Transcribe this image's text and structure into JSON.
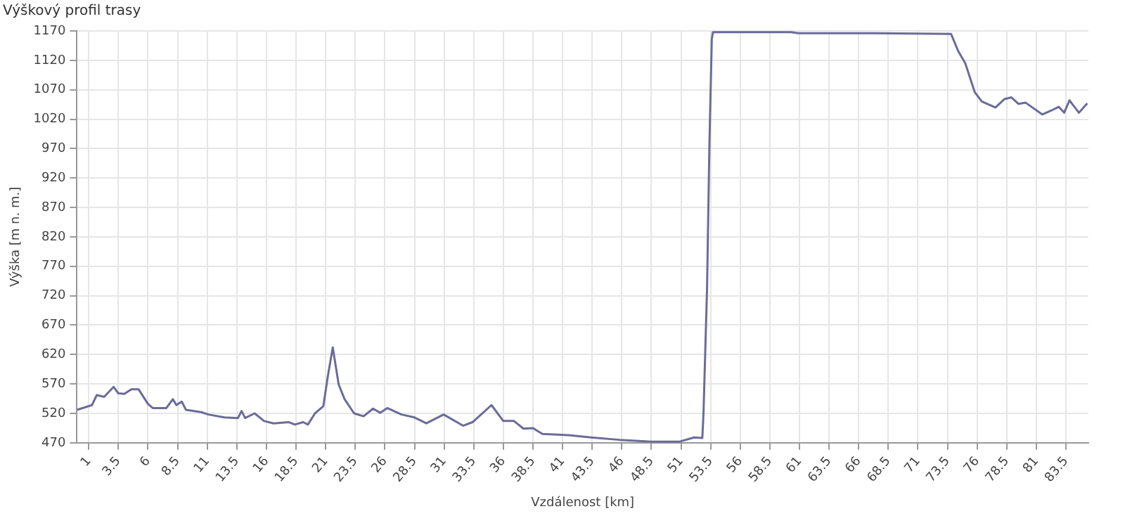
{
  "chart_data": {
    "type": "line",
    "title": "Výškový profil trasy",
    "xlabel": "Vzdálenost [km]",
    "ylabel": "Výška [m n. m.]",
    "xlim": [
      0,
      85.4
    ],
    "xticks": [
      1,
      3.5,
      6,
      8.5,
      11,
      13.5,
      16,
      18.5,
      21,
      23.5,
      26,
      28.5,
      31,
      33.5,
      36,
      38.5,
      41,
      43.5,
      46,
      48.5,
      51,
      53.5,
      56,
      58.5,
      61,
      63.5,
      66,
      68.5,
      71,
      73.5,
      76,
      78.5,
      81,
      83.5
    ],
    "ylim": [
      470,
      1170
    ],
    "yticks": [
      470,
      520,
      570,
      620,
      670,
      720,
      770,
      820,
      870,
      920,
      970,
      1020,
      1070,
      1120,
      1170
    ],
    "grid": true,
    "legend": false,
    "marker": "none",
    "line_style": "solid",
    "series": [
      {
        "color": "#6b6b9a",
        "x": [
          0,
          1.27,
          1.67,
          2.3,
          3.1,
          3.5,
          4.0,
          4.6,
          5.2,
          6.0,
          6.4,
          7.55,
          8.1,
          8.4,
          8.85,
          9.2,
          10.5,
          11.1,
          12.45,
          13.6,
          13.9,
          14.2,
          15.0,
          15.8,
          16.6,
          17.9,
          18.4,
          19.1,
          19.5,
          20.1,
          20.8,
          21.2,
          21.6,
          22.1,
          22.6,
          23.4,
          24.2,
          25.0,
          25.6,
          26.2,
          27.4,
          28.5,
          29.5,
          30.96,
          32.6,
          33.4,
          35.0,
          36.0,
          36.9,
          37.7,
          38.5,
          39.3,
          41.5,
          43.4,
          45.8,
          48.5,
          50.9,
          52.1,
          52.8,
          52.9,
          53.2,
          53.4,
          53.6,
          53.7,
          60.3,
          60.9,
          67.2,
          73.8,
          74.4,
          75.0,
          75.8,
          76.4,
          77.55,
          78.3,
          78.9,
          79.5,
          80.1,
          81.5,
          82.3,
          82.9,
          83.35,
          83.8,
          84.6,
          85.3
        ],
        "values": [
          526,
          534,
          551,
          548,
          565,
          554,
          553,
          561,
          561,
          536,
          529,
          529,
          544,
          534,
          540,
          526,
          522,
          518,
          513,
          512,
          524,
          512,
          520,
          507,
          503,
          505,
          501,
          505,
          501,
          520,
          532,
          585,
          632,
          569,
          544,
          520,
          515,
          528,
          521,
          529,
          518,
          513,
          503,
          518,
          499,
          505,
          534,
          507,
          507,
          494,
          495,
          485,
          483,
          479,
          475,
          472,
          472,
          479,
          478,
          520,
          732,
          977,
          1156,
          1168,
          1168,
          1166,
          1166,
          1165,
          1136,
          1115,
          1066,
          1050,
          1040,
          1054,
          1057,
          1046,
          1048,
          1028,
          1035,
          1041,
          1031,
          1052,
          1031,
          1047
        ]
      }
    ]
  }
}
